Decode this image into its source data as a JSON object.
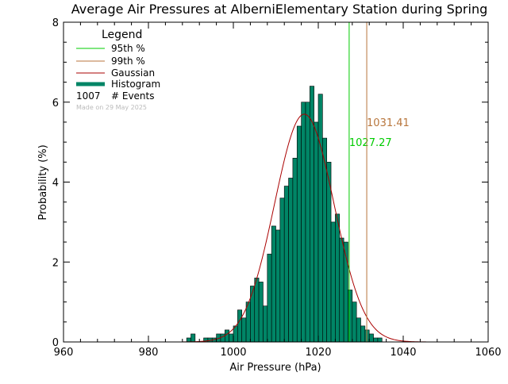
{
  "chart_data": {
    "type": "bar",
    "title": "Average Air Pressures at AlberniElementary Station during Spring",
    "xlabel": "Air Pressure (hPa)",
    "ylabel": "Probability (%)",
    "xlim": [
      960,
      1060
    ],
    "ylim": [
      0,
      8
    ],
    "xticks": [
      960,
      980,
      1000,
      1020,
      1040,
      1060
    ],
    "yticks": [
      0,
      2,
      4,
      6,
      8
    ],
    "bin_width": 1,
    "histogram": {
      "bin_start": [
        989,
        990,
        991,
        992,
        993,
        994,
        995,
        996,
        997,
        998,
        999,
        1000,
        1001,
        1002,
        1003,
        1004,
        1005,
        1006,
        1007,
        1008,
        1009,
        1010,
        1011,
        1012,
        1013,
        1014,
        1015,
        1016,
        1017,
        1018,
        1019,
        1020,
        1021,
        1022,
        1023,
        1024,
        1025,
        1026,
        1027,
        1028,
        1029,
        1030,
        1031,
        1032,
        1033,
        1034
      ],
      "values": [
        0.1,
        0.2,
        0.0,
        0.0,
        0.1,
        0.1,
        0.1,
        0.2,
        0.2,
        0.3,
        0.2,
        0.4,
        0.8,
        0.6,
        1.0,
        1.4,
        1.6,
        1.5,
        0.9,
        2.2,
        2.9,
        2.8,
        3.6,
        3.9,
        4.1,
        4.6,
        5.4,
        6.0,
        6.0,
        6.4,
        5.5,
        6.2,
        5.1,
        4.5,
        3.0,
        3.2,
        2.6,
        2.5,
        1.3,
        1.0,
        0.6,
        0.4,
        0.3,
        0.2,
        0.1,
        0.1
      ]
    },
    "gaussian": {
      "mean": 1016.7,
      "sigma": 7.0,
      "peak": 5.7
    },
    "vlines": [
      {
        "name": "95th %",
        "value": 1027.27,
        "label": "1027.27",
        "color": "#00cc00"
      },
      {
        "name": "99th %",
        "value": 1031.41,
        "label": "1031.41",
        "color": "#b8763c"
      }
    ],
    "legend": {
      "title": "Legend",
      "position": "top-left",
      "items": [
        {
          "label": "95th %",
          "color": "#00cc00",
          "kind": "line"
        },
        {
          "label": "99th %",
          "color": "#b8763c",
          "kind": "line"
        },
        {
          "label": "Gaussian",
          "color": "#aa0000",
          "kind": "line"
        },
        {
          "label": "Histogram",
          "color": "#008566",
          "kind": "thick-line"
        }
      ],
      "events_count": "1007",
      "events_label": "# Events",
      "made_on": "Made on 29 May 2025"
    },
    "colors": {
      "histogram_fill": "#008566",
      "histogram_edge": "#000000",
      "gaussian": "#aa0000",
      "axis": "#000000",
      "made_on": "#bbbbbb"
    }
  }
}
